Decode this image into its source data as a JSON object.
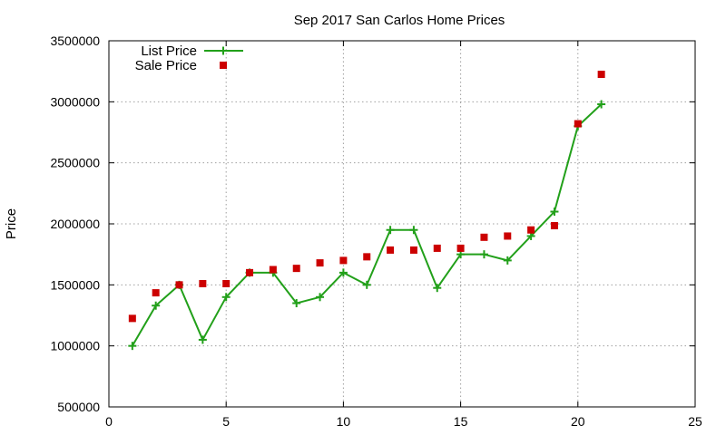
{
  "chart_data": {
    "type": "line",
    "title": "Sep 2017 San Carlos Home Prices",
    "xlabel": "",
    "ylabel": "Price",
    "xlim": [
      0,
      25
    ],
    "ylim": [
      500000,
      3500000
    ],
    "x_ticks": [
      "0",
      "5",
      "10",
      "15",
      "20",
      "25"
    ],
    "y_ticks": [
      "500000",
      "1000000",
      "1500000",
      "2000000",
      "2500000",
      "3000000",
      "3500000"
    ],
    "grid": true,
    "legend_position": "top-left",
    "series": [
      {
        "name": "List Price",
        "style": "line+cross",
        "color": "#22a01a",
        "x": [
          1,
          2,
          3,
          4,
          5,
          6,
          7,
          8,
          9,
          10,
          11,
          12,
          13,
          14,
          15,
          16,
          17,
          18,
          19,
          20,
          21
        ],
        "values": [
          1000000,
          1330000,
          1500000,
          1050000,
          1400000,
          1600000,
          1600000,
          1350000,
          1400000,
          1600000,
          1500000,
          1950000,
          1950000,
          1475000,
          1750000,
          1750000,
          1700000,
          1900000,
          2100000,
          2800000,
          2980000
        ]
      },
      {
        "name": "Sale Price",
        "style": "square-points",
        "color": "#cc0000",
        "x": [
          1,
          2,
          3,
          4,
          5,
          6,
          7,
          8,
          9,
          10,
          11,
          12,
          13,
          14,
          15,
          16,
          17,
          18,
          19,
          20,
          21
        ],
        "values": [
          1225000,
          1435000,
          1500000,
          1510000,
          1510000,
          1600000,
          1625000,
          1635000,
          1680000,
          1700000,
          1730000,
          1785000,
          1785000,
          1800000,
          1800000,
          1890000,
          1900000,
          1950000,
          1985000,
          2820000,
          3225000
        ]
      }
    ]
  }
}
